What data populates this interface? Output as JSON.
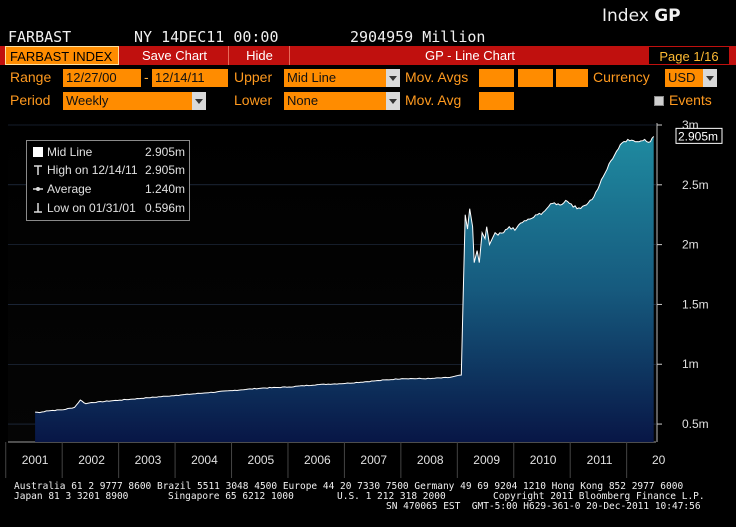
{
  "header": {
    "ticker": "FARBAST",
    "datetime": "NY 14DEC11 00:00",
    "value_text": "2904959 Million",
    "index_label": "Index",
    "index_code": "GP"
  },
  "toolbar": {
    "index_tab": "FARBAST INDEX",
    "save_chart": "Save Chart",
    "hide": "Hide",
    "title": "GP - Line Chart",
    "page": "Page 1/16"
  },
  "controls": {
    "range_label": "Range",
    "range_start": "12/27/00",
    "range_sep": "-",
    "range_end": "12/14/11",
    "upper_label": "Upper",
    "upper_value": "Mid Line",
    "mov_avgs_label": "Mov. Avgs",
    "currency_label": "Currency",
    "currency_value": "USD",
    "period_label": "Period",
    "period_value": "Weekly",
    "lower_label": "Lower",
    "lower_value": "None",
    "mov_avg_label": "Mov. Avg",
    "events_label": "Events"
  },
  "legend": {
    "mid_line_label": "Mid Line",
    "mid_line_value": "2.905m",
    "high_label": "High on 12/14/11",
    "high_value": "2.905m",
    "average_label": "Average",
    "average_value": "1.240m",
    "low_label": "Low on 01/31/01",
    "low_value": "0.596m"
  },
  "chart_data": {
    "type": "area",
    "y_axis_position": "right",
    "y_ticks": [
      "0.5m",
      "1m",
      "1.5m",
      "2m",
      "2.5m",
      "3m"
    ],
    "y_tick_values": [
      0.5,
      1,
      1.5,
      2,
      2.5,
      3
    ],
    "ylim": [
      0.35,
      3.0
    ],
    "x_ticks": [
      "2001",
      "2002",
      "2003",
      "2004",
      "2005",
      "2006",
      "2007",
      "2008",
      "2009",
      "2010",
      "2011",
      "20"
    ],
    "last_value_label": "2.905m",
    "series": [
      {
        "name": "Mid Line",
        "x": [
          2001.0,
          2001.08,
          2001.2,
          2001.5,
          2001.7,
          2001.8,
          2001.9,
          2002.0,
          2002.5,
          2003.0,
          2003.5,
          2004.0,
          2004.5,
          2005.0,
          2005.5,
          2006.0,
          2006.5,
          2007.0,
          2007.5,
          2008.0,
          2008.35,
          2008.55,
          2008.62,
          2008.66,
          2008.7,
          2008.75,
          2008.78,
          2008.83,
          2008.87,
          2008.92,
          2008.97,
          2009.0,
          2009.05,
          2009.1,
          2009.15,
          2009.2,
          2009.3,
          2009.4,
          2009.5,
          2009.6,
          2009.7,
          2009.8,
          2009.9,
          2010.0,
          2010.1,
          2010.2,
          2010.3,
          2010.4,
          2010.5,
          2010.6,
          2010.7,
          2010.8,
          2010.9,
          2011.0,
          2011.1,
          2011.2,
          2011.3,
          2011.4,
          2011.5,
          2011.6,
          2011.7,
          2011.8,
          2011.9,
          2011.96
        ],
        "values": [
          0.6,
          0.596,
          0.61,
          0.62,
          0.64,
          0.7,
          0.67,
          0.68,
          0.7,
          0.72,
          0.74,
          0.76,
          0.78,
          0.8,
          0.81,
          0.83,
          0.84,
          0.86,
          0.88,
          0.88,
          0.89,
          0.91,
          2.25,
          2.13,
          2.3,
          2.15,
          1.85,
          1.95,
          1.85,
          2.1,
          2.05,
          2.15,
          2.0,
          2.05,
          2.1,
          2.08,
          2.1,
          2.15,
          2.12,
          2.18,
          2.2,
          2.22,
          2.25,
          2.27,
          2.32,
          2.35,
          2.33,
          2.37,
          2.34,
          2.3,
          2.32,
          2.35,
          2.4,
          2.5,
          2.6,
          2.7,
          2.78,
          2.85,
          2.88,
          2.87,
          2.86,
          2.88,
          2.86,
          2.905
        ]
      }
    ]
  },
  "footer": {
    "line1": "Australia 61 2 9777 8600 Brazil 5511 3048 4500 Europe 44 20 7330 7500 Germany 49 69 9204 1210 Hong Kong 852 2977 6000",
    "line2_left": "Japan 81 3 3201 8900",
    "line2_mid": "Singapore 65 6212 1000",
    "line2_mid2": "U.S. 1 212 318 2000",
    "line2_right": "Copyright 2011 Bloomberg Finance L.P.",
    "line3": "SN 470065 EST  GMT-5:00 H629-361-0 20-Dec-2011 10:47:56"
  },
  "colors": {
    "toolbar_red": "#c0100e",
    "field_orange": "#ff8c00",
    "label_orange": "#ff9a1f",
    "area_top": "#1f7f95",
    "area_bottom": "#081646",
    "line": "#ffffff"
  }
}
